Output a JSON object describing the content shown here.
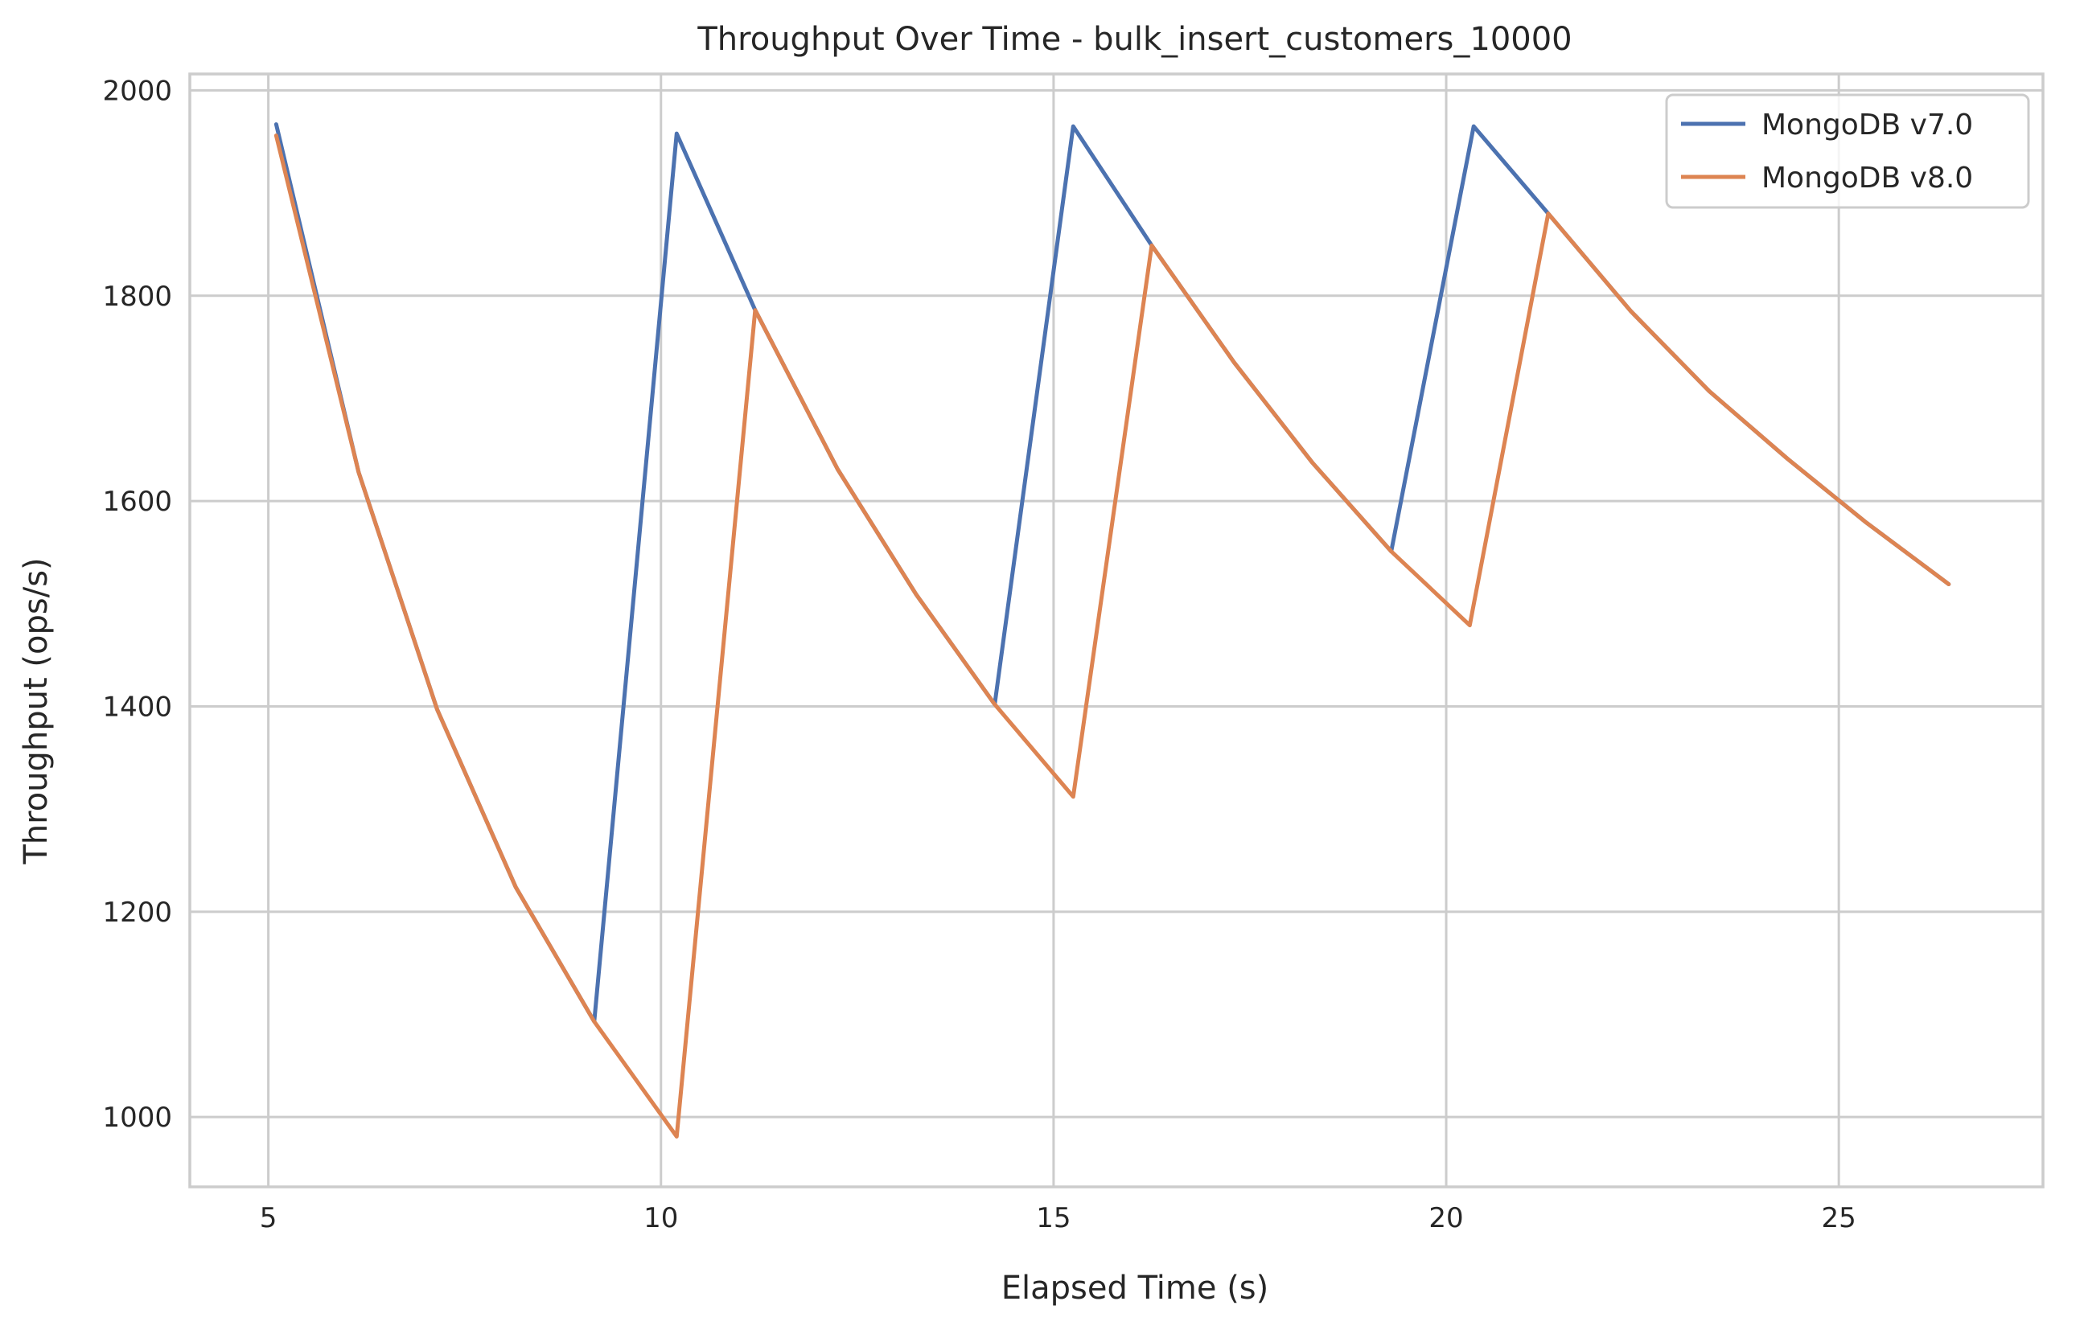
{
  "chart_data": {
    "type": "line",
    "title": "Throughput Over Time - bulk_insert_customers_10000",
    "xlabel": "Elapsed Time (s)",
    "ylabel": "Throughput (ops/s)",
    "xlim": [
      4.0,
      27.6
    ],
    "ylim": [
      932,
      2016
    ],
    "xticks": [
      5,
      10,
      15,
      20,
      25
    ],
    "yticks": [
      1000,
      1200,
      1400,
      1600,
      1800,
      2000
    ],
    "grid": true,
    "legend_position": "top-right",
    "series": [
      {
        "name": "MongoDB v7.0",
        "color": "#4c72b0",
        "x": [
          5.1,
          6.15,
          7.15,
          8.15,
          9.15,
          10.2,
          11.2,
          12.25,
          13.25,
          14.25,
          15.25,
          16.25,
          17.3,
          18.3,
          19.3,
          20.35,
          21.3,
          22.35,
          23.35,
          24.35,
          25.35,
          26.4
        ],
        "y": [
          1967,
          1628,
          1397,
          1224,
          1093,
          1958,
          1786,
          1631,
          1509,
          1402,
          1965,
          1849,
          1735,
          1637,
          1551,
          1965,
          1880,
          1785,
          1707,
          1641,
          1579,
          1519
        ]
      },
      {
        "name": "MongoDB v8.0",
        "color": "#dd8452",
        "x": [
          5.1,
          6.15,
          7.15,
          8.15,
          9.15,
          10.2,
          11.2,
          12.25,
          13.25,
          14.25,
          15.25,
          16.25,
          17.3,
          18.3,
          19.3,
          20.3,
          21.3,
          22.35,
          23.35,
          24.35,
          25.35,
          26.4
        ],
        "y": [
          1956,
          1628,
          1397,
          1224,
          1093,
          981,
          1786,
          1631,
          1509,
          1402,
          1312,
          1849,
          1735,
          1637,
          1551,
          1479,
          1880,
          1785,
          1707,
          1641,
          1579,
          1519
        ]
      }
    ]
  }
}
